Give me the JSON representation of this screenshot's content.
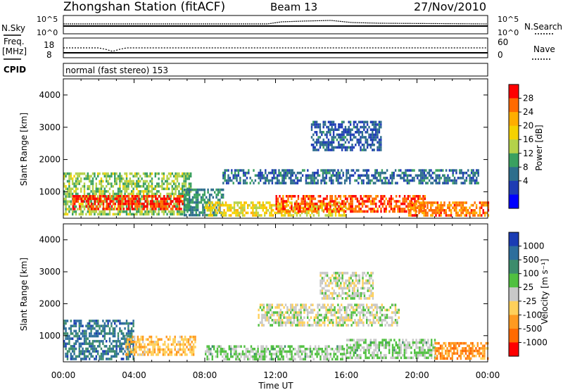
{
  "header": {
    "station": "Zhongshan Station (fitACF)",
    "beam": "Beam 13",
    "date": "27/Nov/2010"
  },
  "noise_panel": {
    "left_label": "N.Sky",
    "right_label": "N.Search",
    "left_ticks": [
      "10^5",
      "10^0"
    ],
    "right_ticks": [
      "10^5",
      "10^0"
    ]
  },
  "freq_panel": {
    "left_label_1": "Freq.",
    "left_label_2": "[MHz]",
    "right_label": "Nave",
    "left_ticks": [
      "18",
      "8"
    ],
    "right_ticks": [
      "60",
      "0"
    ]
  },
  "cpid": {
    "label": "CPID",
    "mode": "normal (fast stereo) 153"
  },
  "x_axis": {
    "label": "Time UT",
    "ticks": [
      "00:00",
      "04:00",
      "08:00",
      "12:00",
      "16:00",
      "20:00",
      "00:00"
    ]
  },
  "power_colorbar": {
    "label": "Power [dB]",
    "ticks": [
      "28",
      "24",
      "20",
      "16",
      "12",
      "8",
      "4"
    ],
    "colors": [
      "#ff0000",
      "#ff6a00",
      "#ffae00",
      "#f5d200",
      "#b4d24a",
      "#3aa060",
      "#2d6e8c",
      "#1e3cb4",
      "#0000ff"
    ]
  },
  "velocity_colorbar": {
    "label": "Velocity [m s⁻¹]",
    "ticks": [
      "1000",
      "500",
      "100",
      "25",
      "-25",
      "-100",
      "-500",
      "-1000"
    ],
    "colors": [
      "#1a3cb4",
      "#2d6e9c",
      "#3c8c6c",
      "#50c040",
      "#c8c8c8",
      "#ffd05a",
      "#ff9a20",
      "#ff6a00",
      "#ff0000"
    ]
  },
  "chart_data": [
    {
      "type": "heatmap",
      "panel": "power",
      "ylabel": "Slant Range [km]",
      "xlabel": "Time UT",
      "xlim": [
        0,
        24
      ],
      "ylim": [
        180,
        4500
      ],
      "yticks": [
        1000,
        2000,
        3000,
        4000
      ],
      "colorbar": "Power [dB]",
      "scale": [
        0,
        30
      ],
      "regions": [
        {
          "t0": 0.0,
          "t1": 7.2,
          "r0": 300,
          "r1": 1600,
          "level": 14
        },
        {
          "t0": 0.5,
          "t1": 6.8,
          "r0": 500,
          "r1": 900,
          "level": 27
        },
        {
          "t0": 6.8,
          "t1": 9.0,
          "r0": 300,
          "r1": 1100,
          "level": 10
        },
        {
          "t0": 8.0,
          "t1": 16.0,
          "r0": 300,
          "r1": 700,
          "level": 18
        },
        {
          "t0": 12.0,
          "t1": 20.5,
          "r0": 400,
          "r1": 900,
          "level": 26
        },
        {
          "t0": 14.0,
          "t1": 18.0,
          "r0": 2300,
          "r1": 3200,
          "level": 7
        },
        {
          "t0": 9.0,
          "t1": 23.5,
          "r0": 1300,
          "r1": 1700,
          "level": 8
        },
        {
          "t0": 19.5,
          "t1": 24.0,
          "r0": 250,
          "r1": 700,
          "level": 24
        }
      ]
    },
    {
      "type": "heatmap",
      "panel": "velocity",
      "ylabel": "Slant Range [km]",
      "xlabel": "Time UT",
      "xlim": [
        0,
        24
      ],
      "ylim": [
        180,
        4500
      ],
      "yticks": [
        1000,
        2000,
        3000,
        4000
      ],
      "colorbar": "Velocity [m s⁻¹]",
      "scale": [
        -1000,
        1000
      ],
      "regions": [
        {
          "t0": 0.0,
          "t1": 4.0,
          "r0": 300,
          "r1": 1500,
          "level": 600
        },
        {
          "t0": 3.5,
          "t1": 7.5,
          "r0": 400,
          "r1": 1000,
          "level": -300
        },
        {
          "t0": 8.0,
          "t1": 16.0,
          "r0": 300,
          "r1": 700,
          "level": 150
        },
        {
          "t0": 11.0,
          "t1": 19.0,
          "r0": 1300,
          "r1": 2000,
          "level": 0
        },
        {
          "t0": 14.5,
          "t1": 17.5,
          "r0": 2200,
          "r1": 3000,
          "level": 0
        },
        {
          "t0": 16.0,
          "t1": 21.0,
          "r0": 300,
          "r1": 900,
          "level": 120
        },
        {
          "t0": 21.0,
          "t1": 24.0,
          "r0": 250,
          "r1": 800,
          "level": -500
        }
      ]
    }
  ]
}
